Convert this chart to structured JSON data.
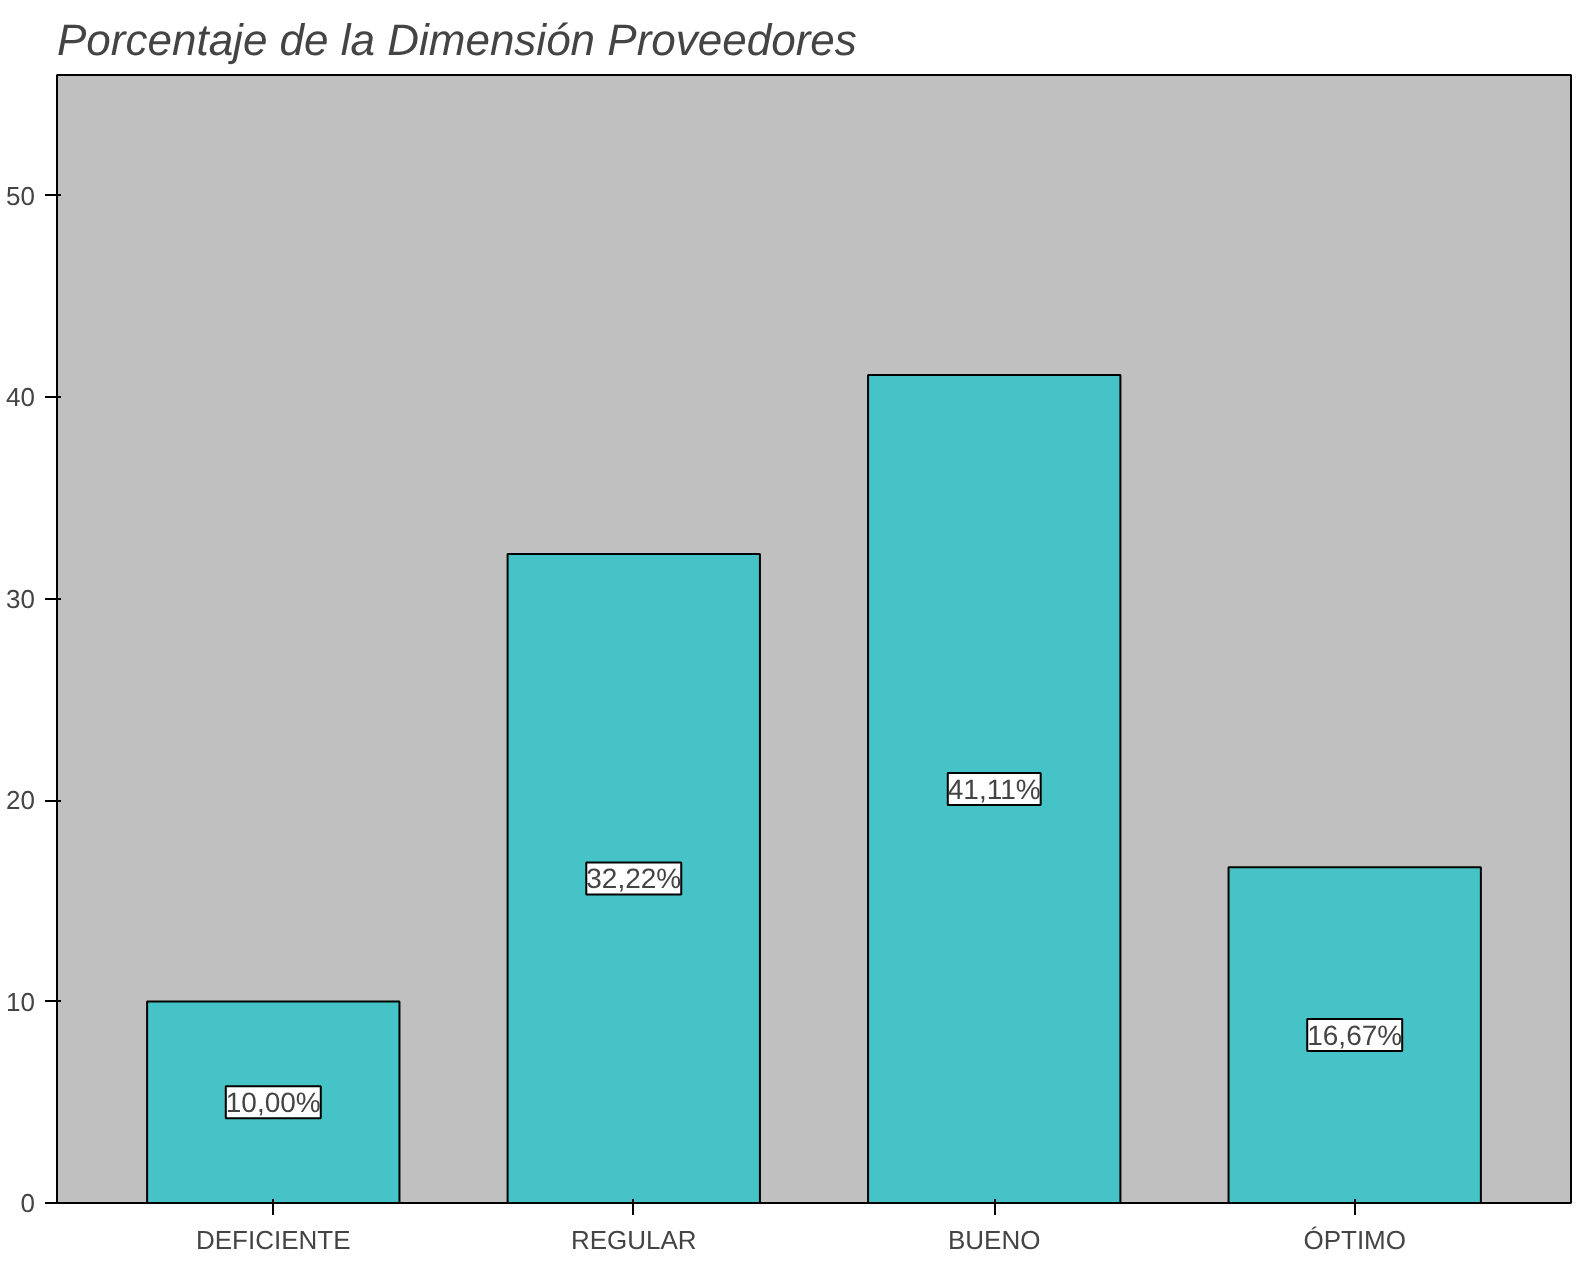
{
  "chart_data": {
    "type": "bar",
    "title": "Porcentaje de la Dimensión Proveedores",
    "categories": [
      "DEFICIENTE",
      "REGULAR",
      "BUENO",
      "ÓPTIMO"
    ],
    "values": [
      10.0,
      32.22,
      41.11,
      16.67
    ],
    "value_labels": [
      "10,00%",
      "32,22%",
      "41,11%",
      "16,67%"
    ],
    "color": "#46c3c6",
    "ylim": [
      0,
      56
    ],
    "yticks": [
      0,
      10,
      20,
      30,
      40,
      50
    ],
    "grid": false
  }
}
